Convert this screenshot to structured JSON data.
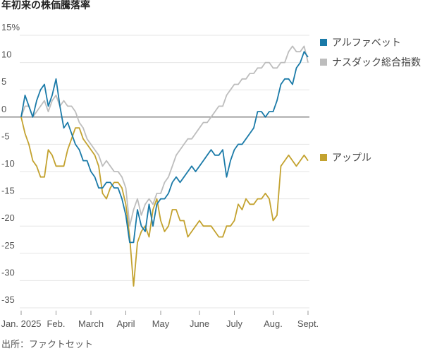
{
  "chart_data": {
    "type": "line",
    "title": "年初来の株価騰落率",
    "source": "出所：ファクトセット",
    "categories": [
      "Jan. 2025",
      null,
      null,
      null,
      null,
      null,
      null,
      null,
      null,
      "Feb.",
      null,
      null,
      null,
      null,
      null,
      null,
      null,
      null,
      "March",
      null,
      null,
      null,
      null,
      null,
      null,
      null,
      null,
      "April",
      null,
      null,
      null,
      null,
      null,
      null,
      null,
      null,
      "May",
      null,
      null,
      null,
      null,
      null,
      null,
      null,
      null,
      null,
      "June",
      null,
      null,
      null,
      null,
      null,
      null,
      null,
      null,
      "July",
      null,
      null,
      null,
      null,
      null,
      null,
      null,
      null,
      null,
      "Aug.",
      null,
      null,
      null,
      null,
      null,
      null,
      null,
      null,
      "Sept."
    ],
    "series": [
      {
        "name": "アルファベット",
        "color": "#1a7aa8",
        "values": [
          0,
          4,
          2,
          0,
          3,
          5,
          6,
          2,
          4,
          7,
          2,
          -2,
          -1,
          -3,
          -5,
          -6,
          -8,
          -8,
          -10,
          -11,
          -13,
          -13,
          -12,
          -12,
          -13,
          -13,
          -15,
          -18,
          -23,
          -23,
          -17,
          -20,
          -21,
          -16,
          -20,
          -16,
          -15,
          -15,
          -14,
          -12,
          -11,
          -12,
          -11,
          -10,
          -9,
          -10,
          -9,
          -8,
          -7,
          -6,
          -7,
          -7,
          -6,
          -11,
          -8,
          -6,
          -5,
          -5,
          -4,
          -3,
          -2,
          1,
          1,
          0,
          1,
          1,
          3,
          6,
          7,
          7,
          6,
          9,
          10,
          12,
          11
        ]
      },
      {
        "name": "ナスダック総合指数",
        "color": "#bdbdbd",
        "values": [
          0,
          2,
          2,
          0,
          1,
          2,
          3,
          1,
          3,
          4,
          2,
          3,
          2,
          2,
          1,
          -1,
          -2,
          -4,
          -5,
          -6,
          -7,
          -9,
          -8,
          -9,
          -10,
          -10,
          -11,
          -13,
          -20,
          -17,
          -15,
          -18,
          -16,
          -15,
          -16,
          -14,
          -14,
          -12,
          -11,
          -9,
          -7,
          -6,
          -5,
          -4,
          -4,
          -3,
          -2,
          -1,
          -1,
          0,
          1,
          2,
          2,
          4,
          5,
          6,
          6,
          7,
          7,
          8,
          8,
          9,
          9,
          10,
          10,
          9,
          9,
          10,
          10,
          12,
          13,
          12,
          12,
          13,
          10
        ]
      },
      {
        "name": "アップル",
        "color": "#c3a22f",
        "values": [
          0,
          -3,
          -5,
          -8,
          -9,
          -11,
          -11,
          -6,
          -7,
          -9,
          -9,
          -9,
          -6,
          -4,
          -2,
          -2,
          -4,
          -5,
          -6,
          -7,
          -9,
          -14,
          -15,
          -13,
          -12,
          -12,
          -13,
          -16,
          -22,
          -31,
          -23,
          -21,
          -20,
          -22,
          -17,
          -15,
          -19,
          -21,
          -20,
          -17,
          -17,
          -19,
          -19,
          -22,
          -21,
          -20,
          -19,
          -20,
          -20,
          -20,
          -21,
          -22,
          -22,
          -20,
          -20,
          -19,
          -16,
          -17,
          -15,
          -16,
          -16,
          -15,
          -15,
          -14,
          -15,
          -19,
          -18,
          -9,
          -8,
          -7,
          -8,
          -9,
          -8,
          -7,
          -8
        ]
      }
    ],
    "ylim": [
      -35,
      15
    ],
    "yticks": [
      {
        "value": 15,
        "label": "15%"
      },
      10,
      5,
      0,
      -5,
      -10,
      -15,
      -20,
      -25,
      -30,
      -35
    ],
    "grid": true
  }
}
